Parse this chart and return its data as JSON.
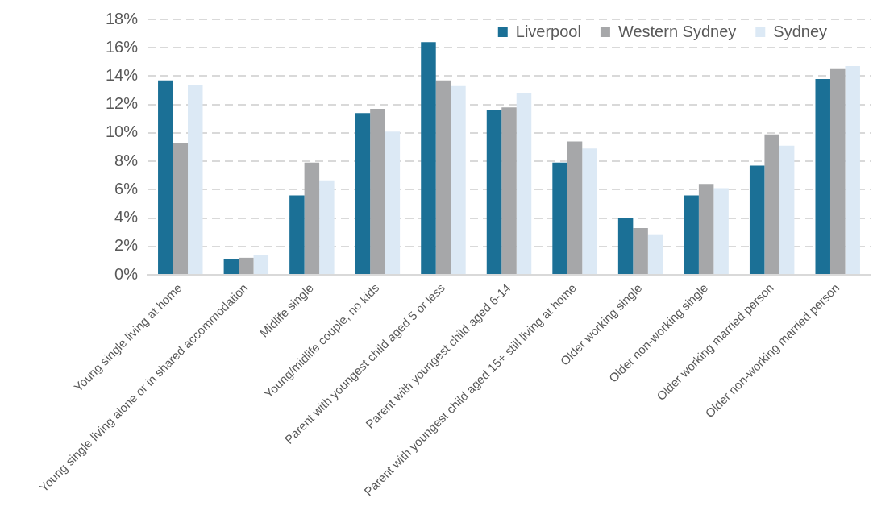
{
  "chart_data": {
    "type": "bar",
    "categories": [
      "Young single living at home",
      "Young single living alone or in shared accommodation",
      "Midlife single",
      "Young/midlife couple, no kids",
      "Parent with youngest child aged 5 or less",
      "Parent with youngest child aged 6-14",
      "Parent with youngest child aged 15+ still living at home",
      "Older working single",
      "Older non-working single",
      "Older working married person",
      "Older non-working married person"
    ],
    "series": [
      {
        "name": "Liverpool",
        "color": "#1b7096",
        "values": [
          13.7,
          1.1,
          5.6,
          11.4,
          16.4,
          11.6,
          7.9,
          4.0,
          5.6,
          7.7,
          13.8
        ]
      },
      {
        "name": "Western Sydney",
        "color": "#a6a7a9",
        "values": [
          9.3,
          1.2,
          7.9,
          11.7,
          13.7,
          11.8,
          9.4,
          3.3,
          6.4,
          9.9,
          14.5
        ]
      },
      {
        "name": "Sydney",
        "color": "#dce9f5",
        "values": [
          13.4,
          1.4,
          6.6,
          10.1,
          13.3,
          12.8,
          8.9,
          2.8,
          6.1,
          9.1,
          14.7
        ]
      }
    ],
    "ylim": [
      0,
      18
    ],
    "yticks": [
      {
        "value": 0,
        "label": "0%"
      },
      {
        "value": 2,
        "label": "2%"
      },
      {
        "value": 4,
        "label": "4%"
      },
      {
        "value": 6,
        "label": "6%"
      },
      {
        "value": 8,
        "label": "8%"
      },
      {
        "value": 10,
        "label": "10%"
      },
      {
        "value": 12,
        "label": "12%"
      },
      {
        "value": 14,
        "label": "14%"
      },
      {
        "value": 16,
        "label": "16%"
      },
      {
        "value": 18,
        "label": "18%"
      }
    ],
    "grid": "y",
    "legend": "top right"
  }
}
